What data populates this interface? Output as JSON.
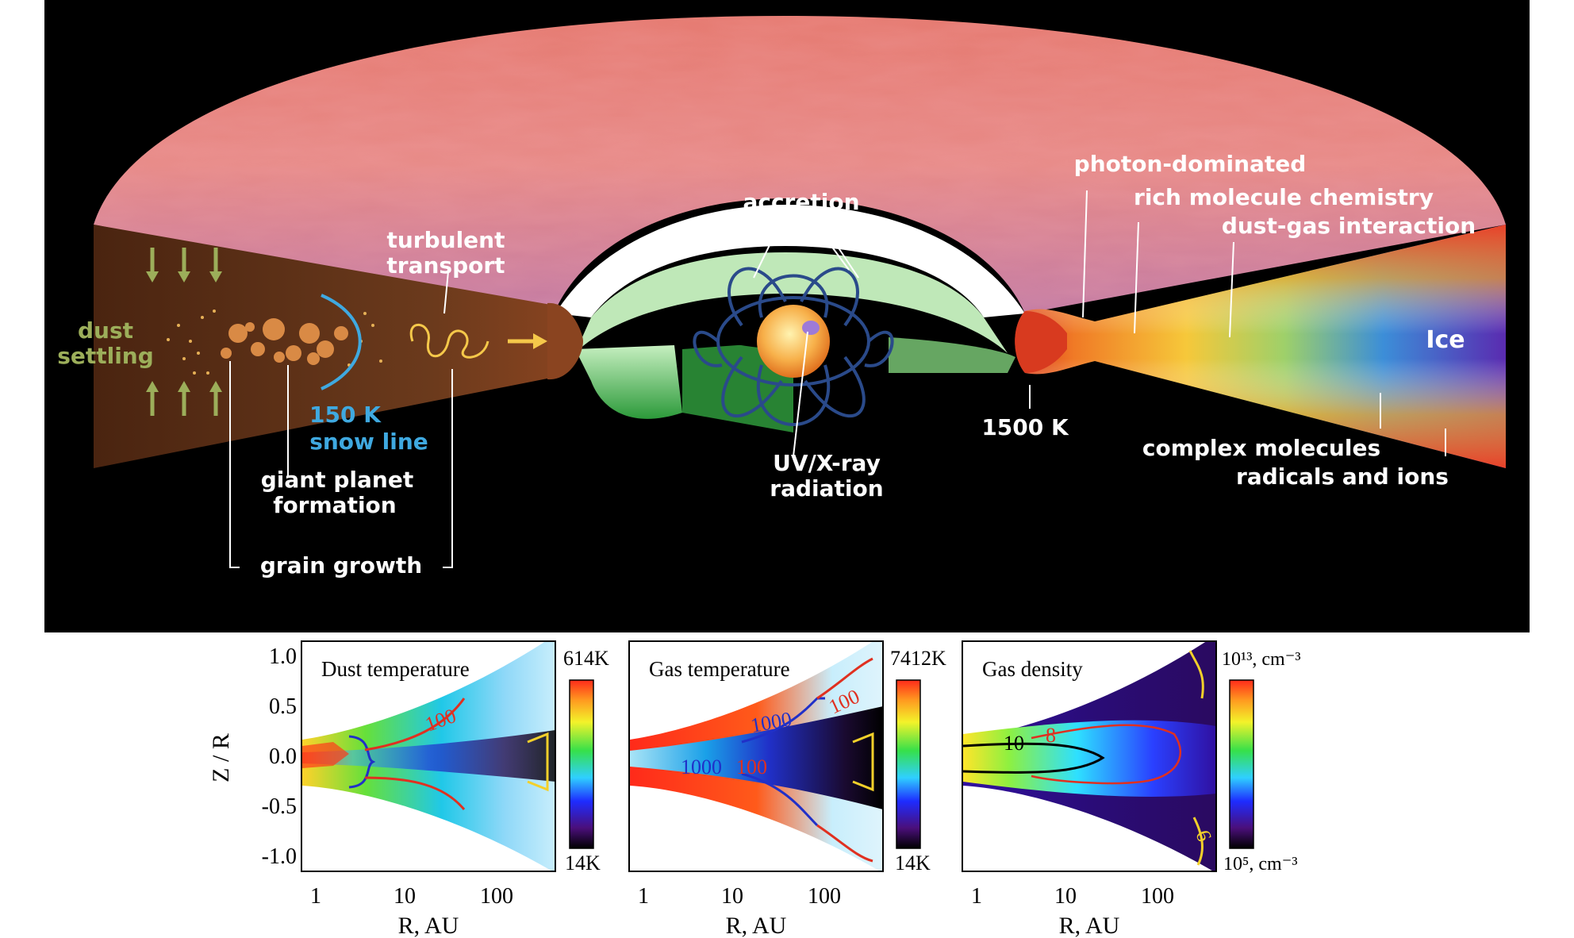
{
  "colors": {
    "background_top": "#000000",
    "disk_surface": "#e8857c",
    "label_white": "#ffffff",
    "label_green": "#9cae5a",
    "label_blue": "#3fa9e0",
    "arrow_yellow": "#f5c84a",
    "inner_rim_red": "#d83a1f"
  },
  "diagram": {
    "labels": {
      "dust_settling": [
        "dust",
        "settling"
      ],
      "turbulent_transport": [
        "turbulent",
        "transport"
      ],
      "snow_line": [
        "150 K",
        "snow line"
      ],
      "giant_planet_formation": [
        "giant planet",
        "formation"
      ],
      "grain_growth": "grain growth",
      "accretion": "accretion",
      "uv_xray_radiation": [
        "UV/X-ray",
        "radiation"
      ],
      "temp_1500k": "1500 K",
      "photon_dominated": "photon-dominated",
      "rich_molecule_chemistry": "rich molecule chemistry",
      "dust_gas_interaction": "dust-gas interaction",
      "ice": "Ice",
      "complex_molecules": "complex molecules",
      "radicals_and_ions": "radicals and ions"
    }
  },
  "panels": {
    "y_axis_label": "Z / R",
    "x_axis_label": "R, AU",
    "y_ticks": [
      "1.0",
      "0.5",
      "0.0",
      "-0.5",
      "-1.0"
    ],
    "x_ticks": [
      "1",
      "10",
      "100"
    ],
    "items": [
      {
        "title": "Dust temperature",
        "scale_max": "614K",
        "scale_min": "14K",
        "contour_labels": [
          "100"
        ]
      },
      {
        "title": "Gas temperature",
        "scale_max": "7412K",
        "scale_min": "14K",
        "contour_labels": [
          "1000",
          "100",
          "1000",
          "100"
        ]
      },
      {
        "title": "Gas density",
        "scale_max": "10¹³, cm⁻³",
        "scale_min": "10⁵, cm⁻³",
        "contour_labels": [
          "10",
          "8",
          "6"
        ]
      }
    ]
  }
}
